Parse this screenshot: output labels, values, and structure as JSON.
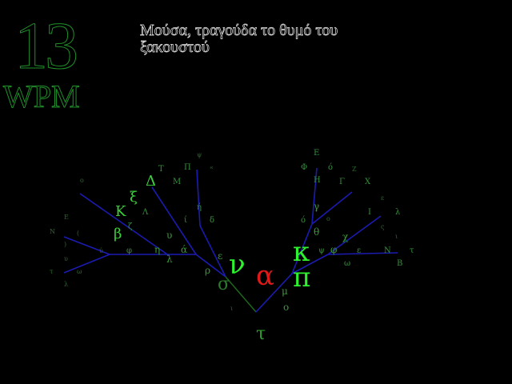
{
  "stats": {
    "wpm_value": "13",
    "wpm_label": "WPM"
  },
  "prompt": {
    "line1": "Μούσα, τραγούδα το θυμό του",
    "line2": "ξακουστού"
  },
  "tree": {
    "root": "τ",
    "current": "α",
    "left_branch_main": [
      "σ",
      "ν",
      "ρ",
      "ε"
    ],
    "right_branch_main": [
      "π",
      "κ",
      "ο",
      "μ"
    ],
    "left_options": [
      "ξ",
      "Κ",
      "β",
      "Δ",
      "λ",
      "η",
      "υ",
      "ζ",
      "Λ",
      "φ",
      "ά",
      "δ",
      "Ξ",
      "ί",
      "ύ",
      "ή"
    ],
    "right_options": [
      "γ",
      "θ",
      "Φ",
      "Η",
      "Ε",
      "Γ",
      "Χ",
      "χ",
      "ψ",
      "φ",
      "ω",
      "Ι",
      "Ν",
      "Β",
      "ι",
      "λ",
      "θ",
      "ε",
      "ό",
      "τ"
    ],
    "far_letters": [
      "ο",
      "Τ",
      "Μ",
      "Π",
      "ψ",
      "«",
      "Ε",
      "Ζ",
      "ο",
      "Ν",
      "(",
      ")",
      "υ",
      "τ",
      "ω",
      "λ",
      "ε",
      "ι",
      "ο",
      "ς"
    ]
  },
  "colors": {
    "background": "#000000",
    "accent_green": "#2df22d",
    "current_red": "#e01818",
    "edge_blue": "#1b1bb0"
  }
}
